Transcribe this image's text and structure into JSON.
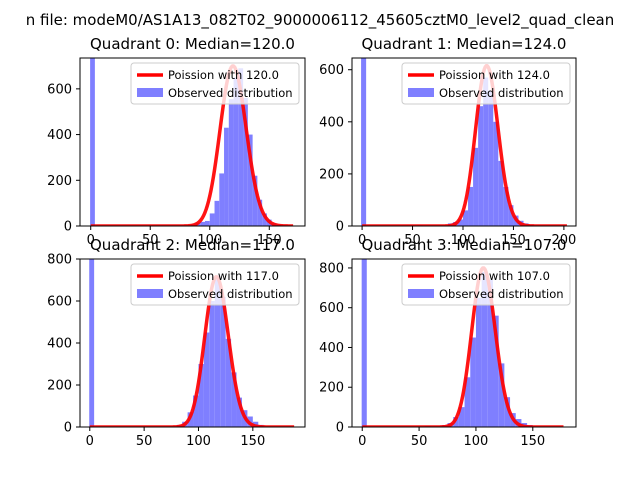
{
  "suptitle": "n file: modeM0/AS1A13_082T02_9000006112_45605cztM0_level2_quad_clean",
  "colors": {
    "hist": "#7f7fff",
    "poisson": "#ff0000",
    "frame": "#000000"
  },
  "chart_data": [
    {
      "type": "bar",
      "title": "Quadrant 0: Median=120.0",
      "median": 120.0,
      "xlim": [
        -9,
        180
      ],
      "ylim": [
        0,
        735
      ],
      "xticks": [
        0,
        50,
        100,
        150
      ],
      "yticks": [
        0,
        200,
        400,
        600
      ],
      "legend": [
        "Poission with 120.0",
        "Observed distribution"
      ],
      "legend_location": "top-right",
      "series": [
        {
          "name": "Observed distribution",
          "kind": "histogram",
          "bins": [
            {
              "x0": -0.5,
              "x1": 3.5,
              "y": 735
            },
            {
              "x0": 84,
              "x1": 88,
              "y": 8
            },
            {
              "x0": 88,
              "x1": 92,
              "y": 14
            },
            {
              "x0": 92,
              "x1": 96,
              "y": 18
            },
            {
              "x0": 96,
              "x1": 100,
              "y": 22
            },
            {
              "x0": 100,
              "x1": 104,
              "y": 55
            },
            {
              "x0": 104,
              "x1": 108,
              "y": 110
            },
            {
              "x0": 108,
              "x1": 112,
              "y": 230
            },
            {
              "x0": 112,
              "x1": 116,
              "y": 430
            },
            {
              "x0": 116,
              "x1": 120,
              "y": 555
            },
            {
              "x0": 120,
              "x1": 124,
              "y": 650
            },
            {
              "x0": 124,
              "x1": 128,
              "y": 690
            },
            {
              "x0": 128,
              "x1": 132,
              "y": 560
            },
            {
              "x0": 132,
              "x1": 136,
              "y": 400
            },
            {
              "x0": 136,
              "x1": 140,
              "y": 220
            },
            {
              "x0": 140,
              "x1": 144,
              "y": 115
            },
            {
              "x0": 144,
              "x1": 148,
              "y": 55
            },
            {
              "x0": 148,
              "x1": 152,
              "y": 28
            },
            {
              "x0": 152,
              "x1": 156,
              "y": 12
            },
            {
              "x0": 156,
              "x1": 160,
              "y": 6
            },
            {
              "x0": 160,
              "x1": 164,
              "y": 3
            }
          ]
        },
        {
          "name": "Poission with 120.0",
          "kind": "poisson",
          "mean": 120.0,
          "peak": 700,
          "x_range": [
            0,
            170
          ]
        }
      ]
    },
    {
      "type": "bar",
      "title": "Quadrant 1: Median=124.0",
      "median": 124.0,
      "xlim": [
        -10,
        212
      ],
      "ylim": [
        0,
        645
      ],
      "xticks": [
        0,
        50,
        100,
        150,
        200
      ],
      "yticks": [
        0,
        200,
        400,
        600
      ],
      "legend": [
        "Poission with 124.0",
        "Observed distribution"
      ],
      "legend_location": "top-right",
      "series": [
        {
          "name": "Observed distribution",
          "kind": "histogram",
          "bins": [
            {
              "x0": -1,
              "x1": 4,
              "y": 645
            },
            {
              "x0": 55,
              "x1": 60,
              "y": 3
            },
            {
              "x0": 85,
              "x1": 90,
              "y": 10
            },
            {
              "x0": 90,
              "x1": 95,
              "y": 15
            },
            {
              "x0": 95,
              "x1": 100,
              "y": 25
            },
            {
              "x0": 100,
              "x1": 105,
              "y": 60
            },
            {
              "x0": 105,
              "x1": 110,
              "y": 150
            },
            {
              "x0": 110,
              "x1": 115,
              "y": 300
            },
            {
              "x0": 115,
              "x1": 120,
              "y": 460
            },
            {
              "x0": 120,
              "x1": 125,
              "y": 570
            },
            {
              "x0": 125,
              "x1": 130,
              "y": 520
            },
            {
              "x0": 130,
              "x1": 135,
              "y": 400
            },
            {
              "x0": 135,
              "x1": 140,
              "y": 250
            },
            {
              "x0": 140,
              "x1": 145,
              "y": 150
            },
            {
              "x0": 145,
              "x1": 150,
              "y": 80
            },
            {
              "x0": 150,
              "x1": 155,
              "y": 40
            },
            {
              "x0": 155,
              "x1": 160,
              "y": 20
            },
            {
              "x0": 160,
              "x1": 165,
              "y": 10
            },
            {
              "x0": 165,
              "x1": 170,
              "y": 5
            }
          ]
        },
        {
          "name": "Poission with 124.0",
          "kind": "poisson",
          "mean": 124.0,
          "peak": 615,
          "x_range": [
            0,
            203
          ]
        }
      ]
    },
    {
      "type": "bar",
      "title": "Quadrant 2: Median=117.0",
      "median": 117.0,
      "xlim": [
        -9,
        198
      ],
      "ylim": [
        0,
        800
      ],
      "xticks": [
        0,
        50,
        100,
        150
      ],
      "yticks": [
        0,
        200,
        400,
        600,
        800
      ],
      "legend": [
        "Poission with 117.0",
        "Observed distribution"
      ],
      "legend_location": "top-right",
      "series": [
        {
          "name": "Observed distribution",
          "kind": "histogram",
          "bins": [
            {
              "x0": -0.5,
              "x1": 4,
              "y": 800
            },
            {
              "x0": 80,
              "x1": 85,
              "y": 10
            },
            {
              "x0": 85,
              "x1": 90,
              "y": 25
            },
            {
              "x0": 90,
              "x1": 95,
              "y": 70
            },
            {
              "x0": 95,
              "x1": 100,
              "y": 150
            },
            {
              "x0": 100,
              "x1": 105,
              "y": 300
            },
            {
              "x0": 105,
              "x1": 110,
              "y": 450
            },
            {
              "x0": 110,
              "x1": 115,
              "y": 600
            },
            {
              "x0": 115,
              "x1": 120,
              "y": 720
            },
            {
              "x0": 120,
              "x1": 125,
              "y": 620
            },
            {
              "x0": 125,
              "x1": 130,
              "y": 420
            },
            {
              "x0": 130,
              "x1": 135,
              "y": 260
            },
            {
              "x0": 135,
              "x1": 140,
              "y": 140
            },
            {
              "x0": 140,
              "x1": 145,
              "y": 80
            },
            {
              "x0": 145,
              "x1": 150,
              "y": 50
            },
            {
              "x0": 150,
              "x1": 155,
              "y": 25
            },
            {
              "x0": 155,
              "x1": 160,
              "y": 10
            }
          ]
        },
        {
          "name": "Poission with 117.0",
          "kind": "poisson",
          "mean": 117.0,
          "peak": 715,
          "x_range": [
            0,
            188
          ]
        }
      ]
    },
    {
      "type": "bar",
      "title": "Quadrant 3: Median=107.0",
      "median": 107.0,
      "xlim": [
        -9,
        188
      ],
      "ylim": [
        0,
        845
      ],
      "xticks": [
        0,
        50,
        100,
        150
      ],
      "yticks": [
        0,
        200,
        400,
        600,
        800
      ],
      "legend": [
        "Poission with 107.0",
        "Observed distribution"
      ],
      "legend_location": "top-right",
      "series": [
        {
          "name": "Observed distribution",
          "kind": "histogram",
          "bins": [
            {
              "x0": -0.5,
              "x1": 4,
              "y": 845
            },
            {
              "x0": 55,
              "x1": 60,
              "y": 5
            },
            {
              "x0": 70,
              "x1": 75,
              "y": 10
            },
            {
              "x0": 75,
              "x1": 80,
              "y": 20
            },
            {
              "x0": 80,
              "x1": 85,
              "y": 50
            },
            {
              "x0": 85,
              "x1": 90,
              "y": 100
            },
            {
              "x0": 90,
              "x1": 95,
              "y": 250
            },
            {
              "x0": 95,
              "x1": 100,
              "y": 450
            },
            {
              "x0": 100,
              "x1": 105,
              "y": 650
            },
            {
              "x0": 105,
              "x1": 110,
              "y": 780
            },
            {
              "x0": 110,
              "x1": 115,
              "y": 740
            },
            {
              "x0": 115,
              "x1": 120,
              "y": 560
            },
            {
              "x0": 120,
              "x1": 125,
              "y": 320
            },
            {
              "x0": 125,
              "x1": 130,
              "y": 150
            },
            {
              "x0": 130,
              "x1": 135,
              "y": 70
            },
            {
              "x0": 135,
              "x1": 140,
              "y": 40
            },
            {
              "x0": 140,
              "x1": 145,
              "y": 20
            },
            {
              "x0": 145,
              "x1": 150,
              "y": 10
            }
          ]
        },
        {
          "name": "Poission with 107.0",
          "kind": "poisson",
          "mean": 107.0,
          "peak": 800,
          "x_range": [
            0,
            177
          ]
        }
      ]
    }
  ]
}
